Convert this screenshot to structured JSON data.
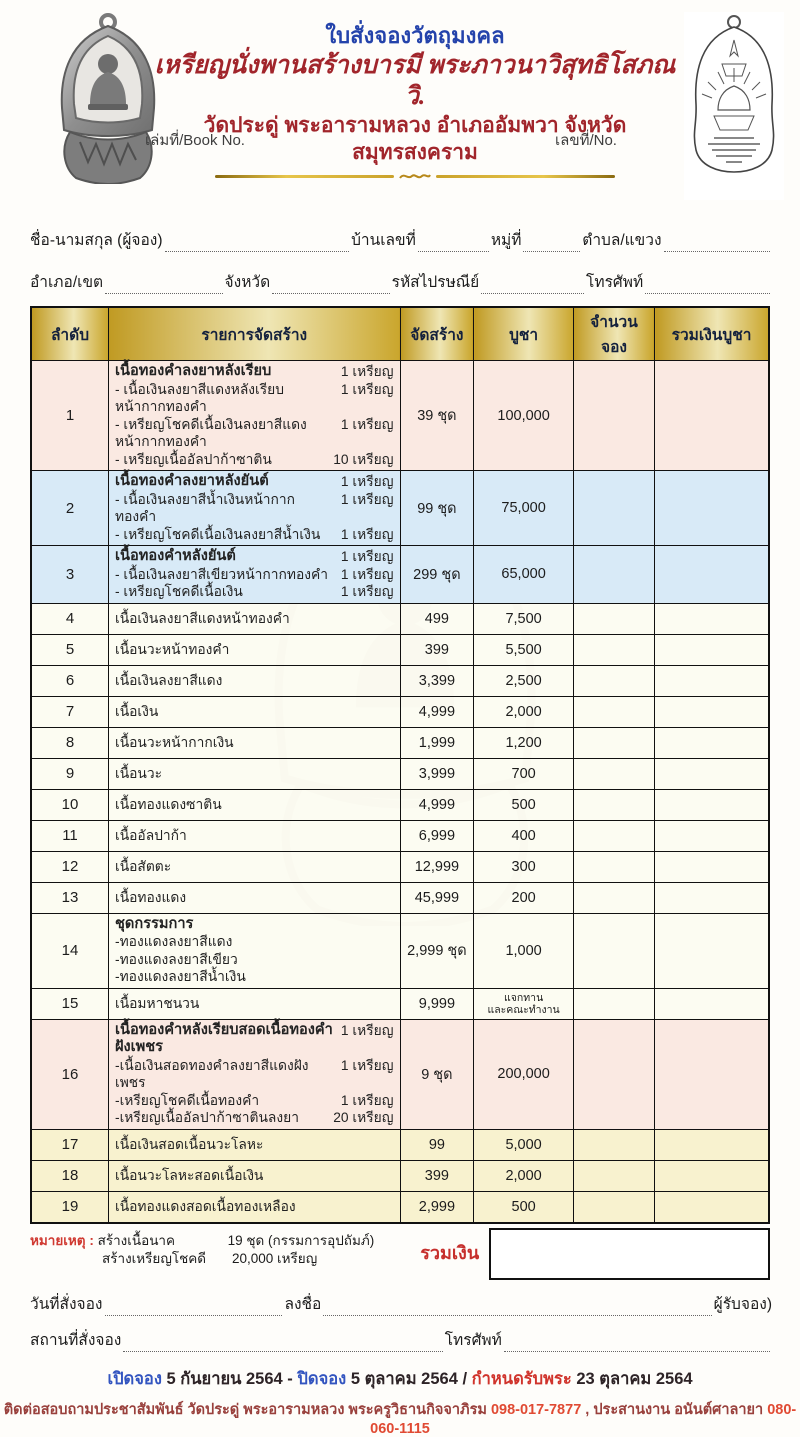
{
  "colors": {
    "title_blue": "#2443ab",
    "heading_red": "#a1252b",
    "gold": "#c9a42d",
    "row_pink": "#fae9e2",
    "row_blue": "#d8eaf7",
    "row_yellow": "#f8f2cf",
    "note_red": "#d03a32",
    "schedule_blue": "#3355c0",
    "schedule_red": "#d0342c",
    "phone_red": "#e04a33"
  },
  "header": {
    "title": "ใบสั่งจองวัตถุมงคล",
    "subtitle1": "เหรียญนั่งพานสร้างบารมี พระภาวนาวิสุทธิโสภณ วิ.",
    "subtitle2": "วัดประดู่ พระอารามหลวง อำเภออัมพวา จังหวัดสมุทรสงคราม",
    "book_no_label": "เล่มที่/Book No.",
    "no_label": "เลขที่/No."
  },
  "form": {
    "name_label": "ชื่อ-นามสกุล (ผู้จอง)",
    "house_no_label": "บ้านเลขที่",
    "moo_label": "หมู่ที่",
    "subdistrict_label": "ตำบล/แขวง",
    "district_label": "อำเภอ/เขต",
    "province_label": "จังหวัด",
    "postcode_label": "รหัสไปรษณีย์",
    "phone_label": "โทรศัพท์"
  },
  "table": {
    "headers": [
      "ลำดับ",
      "รายการจัดสร้าง",
      "จัดสร้าง",
      "บูชา",
      "จำนวนจอง",
      "รวมเงินบูชา"
    ],
    "rows": [
      {
        "num": "1",
        "bg": "pink",
        "lines": [
          {
            "t": "เนื้อทองคำลงยาหลังเรียบ",
            "q": "1 เหรียญ",
            "b": true
          },
          {
            "t": "- เนื้อเงินลงยาสีแดงหลังเรียบหน้ากากทองคำ",
            "q": "1 เหรียญ"
          },
          {
            "t": "- เหรียญโชคดีเนื้อเงินลงยาสีแดงหน้ากากทองคำ",
            "q": "1 เหรียญ"
          },
          {
            "t": "- เหรียญเนื้ออัลปาก้าซาติน",
            "q": "10 เหรียญ"
          }
        ],
        "made": "39 ชุด",
        "price": "100,000"
      },
      {
        "num": "2",
        "bg": "blue",
        "lines": [
          {
            "t": "เนื้อทองคำลงยาหลังยันต์",
            "q": "1 เหรียญ",
            "b": true
          },
          {
            "t": "- เนื้อเงินลงยาสีน้ำเงินหน้ากากทองคำ",
            "q": "1 เหรียญ"
          },
          {
            "t": "- เหรียญโชคดีเนื้อเงินลงยาสีน้ำเงิน",
            "q": "1 เหรียญ"
          }
        ],
        "made": "99 ชุด",
        "price": "75,000"
      },
      {
        "num": "3",
        "bg": "blue",
        "lines": [
          {
            "t": "เนื้อทองคำหลังยันต์",
            "q": "1 เหรียญ",
            "b": true
          },
          {
            "t": "- เนื้อเงินลงยาสีเขียวหน้ากากทองคำ",
            "q": "1 เหรียญ"
          },
          {
            "t": "- เหรียญโชคดีเนื้อเงิน",
            "q": "1 เหรียญ"
          }
        ],
        "made": "299 ชุด",
        "price": "65,000"
      },
      {
        "num": "4",
        "bg": "cream",
        "lines": [
          {
            "t": "เนื้อเงินลงยาสีแดงหน้าทองคำ"
          }
        ],
        "made": "499",
        "price": "7,500"
      },
      {
        "num": "5",
        "bg": "cream",
        "lines": [
          {
            "t": "เนื้อนวะหน้าทองคำ"
          }
        ],
        "made": "399",
        "price": "5,500"
      },
      {
        "num": "6",
        "bg": "cream",
        "lines": [
          {
            "t": "เนื้อเงินลงยาสีแดง"
          }
        ],
        "made": "3,399",
        "price": "2,500"
      },
      {
        "num": "7",
        "bg": "cream",
        "lines": [
          {
            "t": "เนื้อเงิน"
          }
        ],
        "made": "4,999",
        "price": "2,000"
      },
      {
        "num": "8",
        "bg": "cream",
        "lines": [
          {
            "t": "เนื้อนวะหน้ากากเงิน"
          }
        ],
        "made": "1,999",
        "price": "1,200"
      },
      {
        "num": "9",
        "bg": "cream",
        "lines": [
          {
            "t": "เนื้อนวะ"
          }
        ],
        "made": "3,999",
        "price": "700"
      },
      {
        "num": "10",
        "bg": "cream",
        "lines": [
          {
            "t": "เนื้อทองแดงซาติน"
          }
        ],
        "made": "4,999",
        "price": "500"
      },
      {
        "num": "11",
        "bg": "cream",
        "lines": [
          {
            "t": "เนื้ออัลปาก้า"
          }
        ],
        "made": "6,999",
        "price": "400"
      },
      {
        "num": "12",
        "bg": "cream",
        "lines": [
          {
            "t": "เนื้อสัตตะ"
          }
        ],
        "made": "12,999",
        "price": "300"
      },
      {
        "num": "13",
        "bg": "cream",
        "lines": [
          {
            "t": "เนื้อทองแดง"
          }
        ],
        "made": "45,999",
        "price": "200"
      },
      {
        "num": "14",
        "bg": "cream",
        "lines": [
          {
            "t": "ชุดกรรมการ",
            "b": true
          },
          {
            "t": "-ทองแดงลงยาสีแดง"
          },
          {
            "t": "-ทองแดงลงยาสีเขียว"
          },
          {
            "t": "-ทองแดงลงยาสีน้ำเงิน"
          }
        ],
        "made": "2,999 ชุด",
        "price": "1,000"
      },
      {
        "num": "15",
        "bg": "cream",
        "lines": [
          {
            "t": "เนื้อมหาชนวน"
          }
        ],
        "made": "9,999",
        "price_lines": [
          "แจกทาน",
          "และคณะทำงาน"
        ]
      },
      {
        "num": "16",
        "bg": "pink",
        "lines": [
          {
            "t": "เนื้อทองคำหลังเรียบสอดเนื้อทองคำฝังเพชร",
            "q": "1 เหรียญ",
            "b": true
          },
          {
            "t": "-เนื้อเงินสอดทองคำลงยาสีแดงฝังเพชร",
            "q": "1 เหรียญ"
          },
          {
            "t": "-เหรียญโชคดีเนื้อทองคำ",
            "q": "1 เหรียญ"
          },
          {
            "t": "-เหรียญเนื้ออัลปาก้าซาตินลงยา",
            "q": "20 เหรียญ"
          }
        ],
        "made": "9 ชุด",
        "price": "200,000"
      },
      {
        "num": "17",
        "bg": "yellow",
        "lines": [
          {
            "t": "เนื้อเงินสอดเนื้อนวะโลหะ"
          }
        ],
        "made": "99",
        "price": "5,000"
      },
      {
        "num": "18",
        "bg": "yellow",
        "lines": [
          {
            "t": "เนื้อนวะโลหะสอดเนื้อเงิน"
          }
        ],
        "made": "399",
        "price": "2,000"
      },
      {
        "num": "19",
        "bg": "yellow",
        "lines": [
          {
            "t": "เนื้อทองแดงสอดเนื้อทองเหลือง"
          }
        ],
        "made": "2,999",
        "price": "500"
      }
    ]
  },
  "note": {
    "label": "หมายเหตุ :",
    "line1_name": "สร้างเนื้อนาค",
    "line1_value": "19 ชุด (กรรมการอุปถัมภ์)",
    "line2_name": "สร้างเหรียญโชคดี",
    "line2_value": "20,000 เหรียญ",
    "total_label": "รวมเงิน"
  },
  "footer": {
    "order_date_label": "วันที่สั่งจอง",
    "sign_label": "ลงชื่อ",
    "receiver_label": "ผู้รับจอง)",
    "place_label": "สถานที่สั่งจอง",
    "phone_label": "โทรศัพท์",
    "schedule": {
      "open_label": "เปิดจอง",
      "open_value": "5 กันยายน 2564",
      "sep1": "-",
      "close_label": "ปิดจอง",
      "close_value": "5 ตุลาคม 2564",
      "sep2": "/",
      "receive_label": "กำหนดรับพระ",
      "receive_value": "23 ตุลาคม 2564"
    },
    "contact": {
      "part1": "ติดต่อสอบถามประชาสัมพันธ์ วัดประดู่ พระอารามหลวง พระครูวิธานกิจจาภิรม",
      "phone1": "098-017-7877",
      "part2": " ,  ประสานงาน อนันต์ศาลายา",
      "phone2": "080-060-1115"
    }
  }
}
